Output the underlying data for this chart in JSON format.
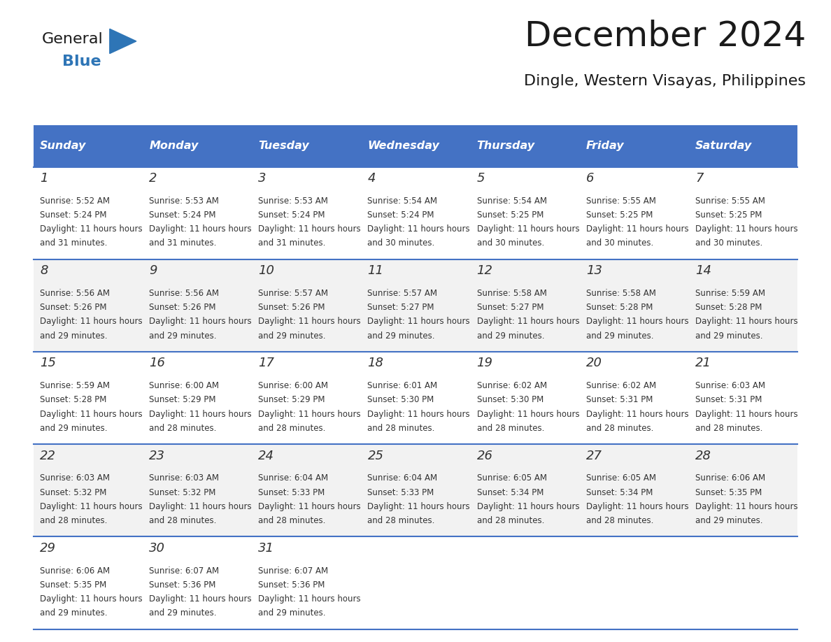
{
  "title": "December 2024",
  "subtitle": "Dingle, Western Visayas, Philippines",
  "header_color": "#4472C4",
  "header_text_color": "#FFFFFF",
  "grid_line_color": "#4472C4",
  "day_names": [
    "Sunday",
    "Monday",
    "Tuesday",
    "Wednesday",
    "Thursday",
    "Friday",
    "Saturday"
  ],
  "bg_color": "#FFFFFF",
  "cell_bg_color": "#FFFFFF",
  "alt_cell_bg_color": "#F2F2F2",
  "day_num_color": "#333333",
  "info_text_color": "#333333",
  "days": [
    {
      "date": 1,
      "row": 0,
      "col": 0,
      "sunrise": "5:52 AM",
      "sunset": "5:24 PM",
      "daylight": "11 hours and 31 minutes"
    },
    {
      "date": 2,
      "row": 0,
      "col": 1,
      "sunrise": "5:53 AM",
      "sunset": "5:24 PM",
      "daylight": "11 hours and 31 minutes"
    },
    {
      "date": 3,
      "row": 0,
      "col": 2,
      "sunrise": "5:53 AM",
      "sunset": "5:24 PM",
      "daylight": "11 hours and 31 minutes"
    },
    {
      "date": 4,
      "row": 0,
      "col": 3,
      "sunrise": "5:54 AM",
      "sunset": "5:24 PM",
      "daylight": "11 hours and 30 minutes"
    },
    {
      "date": 5,
      "row": 0,
      "col": 4,
      "sunrise": "5:54 AM",
      "sunset": "5:25 PM",
      "daylight": "11 hours and 30 minutes"
    },
    {
      "date": 6,
      "row": 0,
      "col": 5,
      "sunrise": "5:55 AM",
      "sunset": "5:25 PM",
      "daylight": "11 hours and 30 minutes"
    },
    {
      "date": 7,
      "row": 0,
      "col": 6,
      "sunrise": "5:55 AM",
      "sunset": "5:25 PM",
      "daylight": "11 hours and 30 minutes"
    },
    {
      "date": 8,
      "row": 1,
      "col": 0,
      "sunrise": "5:56 AM",
      "sunset": "5:26 PM",
      "daylight": "11 hours and 29 minutes"
    },
    {
      "date": 9,
      "row": 1,
      "col": 1,
      "sunrise": "5:56 AM",
      "sunset": "5:26 PM",
      "daylight": "11 hours and 29 minutes"
    },
    {
      "date": 10,
      "row": 1,
      "col": 2,
      "sunrise": "5:57 AM",
      "sunset": "5:26 PM",
      "daylight": "11 hours and 29 minutes"
    },
    {
      "date": 11,
      "row": 1,
      "col": 3,
      "sunrise": "5:57 AM",
      "sunset": "5:27 PM",
      "daylight": "11 hours and 29 minutes"
    },
    {
      "date": 12,
      "row": 1,
      "col": 4,
      "sunrise": "5:58 AM",
      "sunset": "5:27 PM",
      "daylight": "11 hours and 29 minutes"
    },
    {
      "date": 13,
      "row": 1,
      "col": 5,
      "sunrise": "5:58 AM",
      "sunset": "5:28 PM",
      "daylight": "11 hours and 29 minutes"
    },
    {
      "date": 14,
      "row": 1,
      "col": 6,
      "sunrise": "5:59 AM",
      "sunset": "5:28 PM",
      "daylight": "11 hours and 29 minutes"
    },
    {
      "date": 15,
      "row": 2,
      "col": 0,
      "sunrise": "5:59 AM",
      "sunset": "5:28 PM",
      "daylight": "11 hours and 29 minutes"
    },
    {
      "date": 16,
      "row": 2,
      "col": 1,
      "sunrise": "6:00 AM",
      "sunset": "5:29 PM",
      "daylight": "11 hours and 28 minutes"
    },
    {
      "date": 17,
      "row": 2,
      "col": 2,
      "sunrise": "6:00 AM",
      "sunset": "5:29 PM",
      "daylight": "11 hours and 28 minutes"
    },
    {
      "date": 18,
      "row": 2,
      "col": 3,
      "sunrise": "6:01 AM",
      "sunset": "5:30 PM",
      "daylight": "11 hours and 28 minutes"
    },
    {
      "date": 19,
      "row": 2,
      "col": 4,
      "sunrise": "6:02 AM",
      "sunset": "5:30 PM",
      "daylight": "11 hours and 28 minutes"
    },
    {
      "date": 20,
      "row": 2,
      "col": 5,
      "sunrise": "6:02 AM",
      "sunset": "5:31 PM",
      "daylight": "11 hours and 28 minutes"
    },
    {
      "date": 21,
      "row": 2,
      "col": 6,
      "sunrise": "6:03 AM",
      "sunset": "5:31 PM",
      "daylight": "11 hours and 28 minutes"
    },
    {
      "date": 22,
      "row": 3,
      "col": 0,
      "sunrise": "6:03 AM",
      "sunset": "5:32 PM",
      "daylight": "11 hours and 28 minutes"
    },
    {
      "date": 23,
      "row": 3,
      "col": 1,
      "sunrise": "6:03 AM",
      "sunset": "5:32 PM",
      "daylight": "11 hours and 28 minutes"
    },
    {
      "date": 24,
      "row": 3,
      "col": 2,
      "sunrise": "6:04 AM",
      "sunset": "5:33 PM",
      "daylight": "11 hours and 28 minutes"
    },
    {
      "date": 25,
      "row": 3,
      "col": 3,
      "sunrise": "6:04 AM",
      "sunset": "5:33 PM",
      "daylight": "11 hours and 28 minutes"
    },
    {
      "date": 26,
      "row": 3,
      "col": 4,
      "sunrise": "6:05 AM",
      "sunset": "5:34 PM",
      "daylight": "11 hours and 28 minutes"
    },
    {
      "date": 27,
      "row": 3,
      "col": 5,
      "sunrise": "6:05 AM",
      "sunset": "5:34 PM",
      "daylight": "11 hours and 28 minutes"
    },
    {
      "date": 28,
      "row": 3,
      "col": 6,
      "sunrise": "6:06 AM",
      "sunset": "5:35 PM",
      "daylight": "11 hours and 29 minutes"
    },
    {
      "date": 29,
      "row": 4,
      "col": 0,
      "sunrise": "6:06 AM",
      "sunset": "5:35 PM",
      "daylight": "11 hours and 29 minutes"
    },
    {
      "date": 30,
      "row": 4,
      "col": 1,
      "sunrise": "6:07 AM",
      "sunset": "5:36 PM",
      "daylight": "11 hours and 29 minutes"
    },
    {
      "date": 31,
      "row": 4,
      "col": 2,
      "sunrise": "6:07 AM",
      "sunset": "5:36 PM",
      "daylight": "11 hours and 29 minutes"
    }
  ],
  "logo_general_color": "#1a1a1a",
  "logo_blue_color": "#2E75B6",
  "num_rows": 5,
  "num_cols": 7
}
